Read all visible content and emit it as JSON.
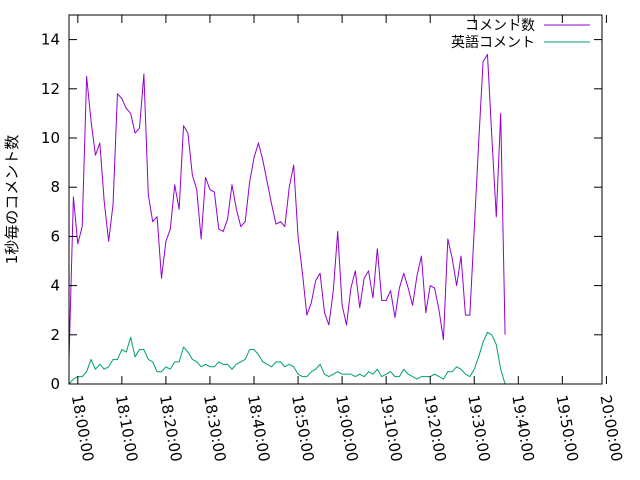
{
  "chart_data": {
    "type": "line",
    "title": "",
    "xlabel": "",
    "ylabel": "1秒毎のコメント数",
    "xlim": [
      "17:58:00",
      "19:59:00"
    ],
    "ylim": [
      0,
      15
    ],
    "x_ticks": [
      "18:00:00",
      "18:10:00",
      "18:20:00",
      "18:30:00",
      "18:40:00",
      "18:50:00",
      "19:00:00",
      "19:10:00",
      "19:20:00",
      "19:30:00",
      "19:40:00",
      "19:50:00",
      "20:00:00"
    ],
    "y_ticks": [
      0,
      2,
      4,
      6,
      8,
      10,
      12,
      14
    ],
    "legend_position": "top-right",
    "grid": false,
    "series": [
      {
        "name": "コメント数",
        "color": "#9400d3",
        "points": [
          [
            "17:58:00",
            1.0
          ],
          [
            "17:59:00",
            7.6
          ],
          [
            "18:00:00",
            5.7
          ],
          [
            "18:01:00",
            6.4
          ],
          [
            "18:02:00",
            12.5
          ],
          [
            "18:03:00",
            10.7
          ],
          [
            "18:04:00",
            9.3
          ],
          [
            "18:05:00",
            9.8
          ],
          [
            "18:06:00",
            7.4
          ],
          [
            "18:07:00",
            5.8
          ],
          [
            "18:08:00",
            7.3
          ],
          [
            "18:09:00",
            11.8
          ],
          [
            "18:10:00",
            11.6
          ],
          [
            "18:11:00",
            11.2
          ],
          [
            "18:12:00",
            11.0
          ],
          [
            "18:13:00",
            10.2
          ],
          [
            "18:14:00",
            10.4
          ],
          [
            "18:15:00",
            12.6
          ],
          [
            "18:16:00",
            7.7
          ],
          [
            "18:17:00",
            6.6
          ],
          [
            "18:18:00",
            6.8
          ],
          [
            "18:19:00",
            4.3
          ],
          [
            "18:20:00",
            5.8
          ],
          [
            "18:21:00",
            6.3
          ],
          [
            "18:22:00",
            8.1
          ],
          [
            "18:23:00",
            7.1
          ],
          [
            "18:24:00",
            10.5
          ],
          [
            "18:25:00",
            10.2
          ],
          [
            "18:26:00",
            8.5
          ],
          [
            "18:27:00",
            7.9
          ],
          [
            "18:28:00",
            5.9
          ],
          [
            "18:29:00",
            8.4
          ],
          [
            "18:30:00",
            7.9
          ],
          [
            "18:31:00",
            7.8
          ],
          [
            "18:32:00",
            6.3
          ],
          [
            "18:33:00",
            6.2
          ],
          [
            "18:34:00",
            6.7
          ],
          [
            "18:35:00",
            8.1
          ],
          [
            "18:36:00",
            7.1
          ],
          [
            "18:37:00",
            6.4
          ],
          [
            "18:38:00",
            6.6
          ],
          [
            "18:39:00",
            8.2
          ],
          [
            "18:40:00",
            9.2
          ],
          [
            "18:41:00",
            9.8
          ],
          [
            "18:42:00",
            9.1
          ],
          [
            "18:43:00",
            8.2
          ],
          [
            "18:44:00",
            7.3
          ],
          [
            "18:45:00",
            6.5
          ],
          [
            "18:46:00",
            6.6
          ],
          [
            "18:47:00",
            6.4
          ],
          [
            "18:48:00",
            8.0
          ],
          [
            "18:49:00",
            8.9
          ],
          [
            "18:50:00",
            6.0
          ],
          [
            "18:51:00",
            4.5
          ],
          [
            "18:52:00",
            2.8
          ],
          [
            "18:53:00",
            3.3
          ],
          [
            "18:54:00",
            4.2
          ],
          [
            "18:55:00",
            4.5
          ],
          [
            "18:56:00",
            2.9
          ],
          [
            "18:57:00",
            2.4
          ],
          [
            "18:58:00",
            3.8
          ],
          [
            "18:59:00",
            6.2
          ],
          [
            "19:00:00",
            3.2
          ],
          [
            "19:01:00",
            2.4
          ],
          [
            "19:02:00",
            3.9
          ],
          [
            "19:03:00",
            4.6
          ],
          [
            "19:04:00",
            3.1
          ],
          [
            "19:05:00",
            4.3
          ],
          [
            "19:06:00",
            4.6
          ],
          [
            "19:07:00",
            3.5
          ],
          [
            "19:08:00",
            5.5
          ],
          [
            "19:09:00",
            3.4
          ],
          [
            "19:10:00",
            3.4
          ],
          [
            "19:11:00",
            3.8
          ],
          [
            "19:12:00",
            2.7
          ],
          [
            "19:13:00",
            3.9
          ],
          [
            "19:14:00",
            4.5
          ],
          [
            "19:15:00",
            3.9
          ],
          [
            "19:16:00",
            3.2
          ],
          [
            "19:17:00",
            4.4
          ],
          [
            "19:18:00",
            5.2
          ],
          [
            "19:19:00",
            2.9
          ],
          [
            "19:20:00",
            4.0
          ],
          [
            "19:21:00",
            3.9
          ],
          [
            "19:22:00",
            3.0
          ],
          [
            "19:23:00",
            1.8
          ],
          [
            "19:24:00",
            5.9
          ],
          [
            "19:25:00",
            5.1
          ],
          [
            "19:26:00",
            4.0
          ],
          [
            "19:27:00",
            5.2
          ],
          [
            "19:28:00",
            2.8
          ],
          [
            "19:29:00",
            2.8
          ],
          [
            "19:30:00",
            6.3
          ],
          [
            "19:31:00",
            9.8
          ],
          [
            "19:32:00",
            13.1
          ],
          [
            "19:33:00",
            13.4
          ],
          [
            "19:34:00",
            10.0
          ],
          [
            "19:35:00",
            6.8
          ],
          [
            "19:36:00",
            11.0
          ],
          [
            "19:37:00",
            2.0
          ]
        ]
      },
      {
        "name": "英語コメント",
        "color": "#009e73",
        "points": [
          [
            "17:58:00",
            0.0
          ],
          [
            "17:59:00",
            0.2
          ],
          [
            "18:00:00",
            0.3
          ],
          [
            "18:01:00",
            0.3
          ],
          [
            "18:02:00",
            0.5
          ],
          [
            "18:03:00",
            1.0
          ],
          [
            "18:04:00",
            0.6
          ],
          [
            "18:05:00",
            0.8
          ],
          [
            "18:06:00",
            0.6
          ],
          [
            "18:07:00",
            0.7
          ],
          [
            "18:08:00",
            1.0
          ],
          [
            "18:09:00",
            1.0
          ],
          [
            "18:10:00",
            1.4
          ],
          [
            "18:11:00",
            1.3
          ],
          [
            "18:12:00",
            1.9
          ],
          [
            "18:13:00",
            1.1
          ],
          [
            "18:14:00",
            1.4
          ],
          [
            "18:15:00",
            1.4
          ],
          [
            "18:16:00",
            1.0
          ],
          [
            "18:17:00",
            0.9
          ],
          [
            "18:18:00",
            0.5
          ],
          [
            "18:19:00",
            0.5
          ],
          [
            "18:20:00",
            0.7
          ],
          [
            "18:21:00",
            0.6
          ],
          [
            "18:22:00",
            0.9
          ],
          [
            "18:23:00",
            0.9
          ],
          [
            "18:24:00",
            1.5
          ],
          [
            "18:25:00",
            1.3
          ],
          [
            "18:26:00",
            1.0
          ],
          [
            "18:27:00",
            0.9
          ],
          [
            "18:28:00",
            0.7
          ],
          [
            "18:29:00",
            0.8
          ],
          [
            "18:30:00",
            0.7
          ],
          [
            "18:31:00",
            0.7
          ],
          [
            "18:32:00",
            0.9
          ],
          [
            "18:33:00",
            0.8
          ],
          [
            "18:34:00",
            0.8
          ],
          [
            "18:35:00",
            0.6
          ],
          [
            "18:36:00",
            0.8
          ],
          [
            "18:37:00",
            0.9
          ],
          [
            "18:38:00",
            1.0
          ],
          [
            "18:39:00",
            1.4
          ],
          [
            "18:40:00",
            1.4
          ],
          [
            "18:41:00",
            1.2
          ],
          [
            "18:42:00",
            0.9
          ],
          [
            "18:43:00",
            0.8
          ],
          [
            "18:44:00",
            0.7
          ],
          [
            "18:45:00",
            0.9
          ],
          [
            "18:46:00",
            0.9
          ],
          [
            "18:47:00",
            0.7
          ],
          [
            "18:48:00",
            0.8
          ],
          [
            "18:49:00",
            0.7
          ],
          [
            "18:50:00",
            0.4
          ],
          [
            "18:51:00",
            0.3
          ],
          [
            "18:52:00",
            0.3
          ],
          [
            "18:53:00",
            0.5
          ],
          [
            "18:54:00",
            0.6
          ],
          [
            "18:55:00",
            0.8
          ],
          [
            "18:56:00",
            0.4
          ],
          [
            "18:57:00",
            0.3
          ],
          [
            "18:58:00",
            0.4
          ],
          [
            "18:59:00",
            0.5
          ],
          [
            "19:00:00",
            0.4
          ],
          [
            "19:01:00",
            0.4
          ],
          [
            "19:02:00",
            0.4
          ],
          [
            "19:03:00",
            0.3
          ],
          [
            "19:04:00",
            0.4
          ],
          [
            "19:05:00",
            0.3
          ],
          [
            "19:06:00",
            0.5
          ],
          [
            "19:07:00",
            0.4
          ],
          [
            "19:08:00",
            0.6
          ],
          [
            "19:09:00",
            0.3
          ],
          [
            "19:10:00",
            0.4
          ],
          [
            "19:11:00",
            0.5
          ],
          [
            "19:12:00",
            0.3
          ],
          [
            "19:13:00",
            0.3
          ],
          [
            "19:14:00",
            0.6
          ],
          [
            "19:15:00",
            0.4
          ],
          [
            "19:16:00",
            0.3
          ],
          [
            "19:17:00",
            0.2
          ],
          [
            "19:18:00",
            0.3
          ],
          [
            "19:19:00",
            0.3
          ],
          [
            "19:20:00",
            0.3
          ],
          [
            "19:21:00",
            0.4
          ],
          [
            "19:22:00",
            0.3
          ],
          [
            "19:23:00",
            0.2
          ],
          [
            "19:24:00",
            0.5
          ],
          [
            "19:25:00",
            0.5
          ],
          [
            "19:26:00",
            0.7
          ],
          [
            "19:27:00",
            0.6
          ],
          [
            "19:28:00",
            0.4
          ],
          [
            "19:29:00",
            0.3
          ],
          [
            "19:30:00",
            0.6
          ],
          [
            "19:31:00",
            1.1
          ],
          [
            "19:32:00",
            1.7
          ],
          [
            "19:33:00",
            2.1
          ],
          [
            "19:34:00",
            2.0
          ],
          [
            "19:35:00",
            1.6
          ],
          [
            "19:36:00",
            0.6
          ],
          [
            "19:37:00",
            0.0
          ]
        ]
      }
    ]
  }
}
